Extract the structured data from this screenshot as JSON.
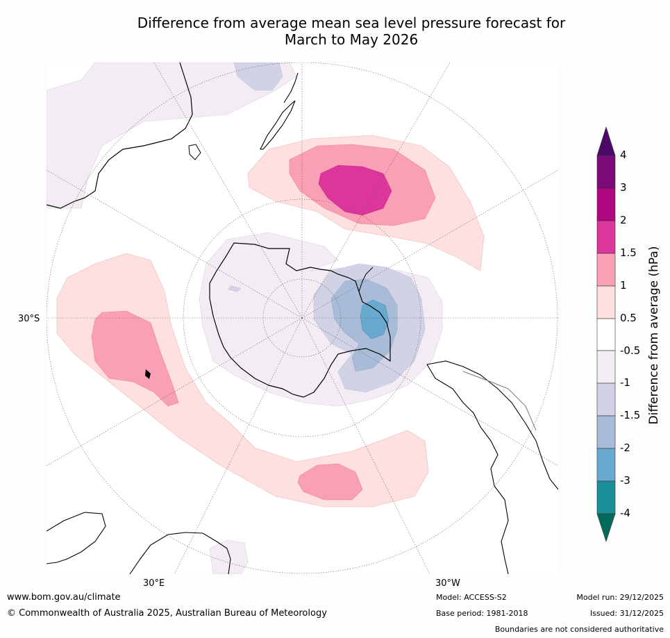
{
  "title": {
    "line1": "Difference from average mean sea level pressure forecast for",
    "line2": "March to May 2026"
  },
  "map": {
    "projection": "south polar stereographic",
    "labels": {
      "lat30s": "30°S",
      "lon30e": "30°E",
      "lon30w": "30°W"
    },
    "anomaly_regions": [
      "positive anomaly (1.5 to 2 hPa) south of New Zealand",
      "positive anomaly (1 to 1.5 hPa) southern Indian Ocean",
      "positive anomaly (1 to 1.5 hPa) south of Africa / Atlantic",
      "negative anomaly (-3 to -2 hPa) Weddell Sea / Antarctic Peninsula"
    ]
  },
  "colorbar": {
    "title": "Difference from average (hPa)",
    "ticks": [
      "4",
      "3",
      "2",
      "1.5",
      "1",
      "0.5",
      "-0.5",
      "-1",
      "-1.5",
      "-2",
      "-3",
      "-4"
    ],
    "colors": {
      "over": "#4b0a68",
      "c3_4": "#7a0b78",
      "c2_3": "#b0067f",
      "c15_2": "#dd369b",
      "c1_15": "#f99fb6",
      "c05_1": "#fde0df",
      "c_neutral": "#ffffff",
      "cm1_m05": "#f3ecf3",
      "cm15_m1": "#d1d2e5",
      "cm2_m15": "#a8bcd8",
      "cm3_m2": "#68a9cf",
      "cm4_m3": "#1b8f98",
      "under": "#026b5c"
    }
  },
  "footer": {
    "url": "www.bom.gov.au/climate",
    "copyright": "© Commonwealth of Australia 2025, Australian Bureau of Meteorology",
    "model": "Model: ACCESS-S2",
    "base_period": "Base period: 1981-2018",
    "model_run": "Model run: 29/12/2025",
    "issued": "Issued: 31/12/2025",
    "disclaimer": "Boundaries are not considered authoritative"
  }
}
